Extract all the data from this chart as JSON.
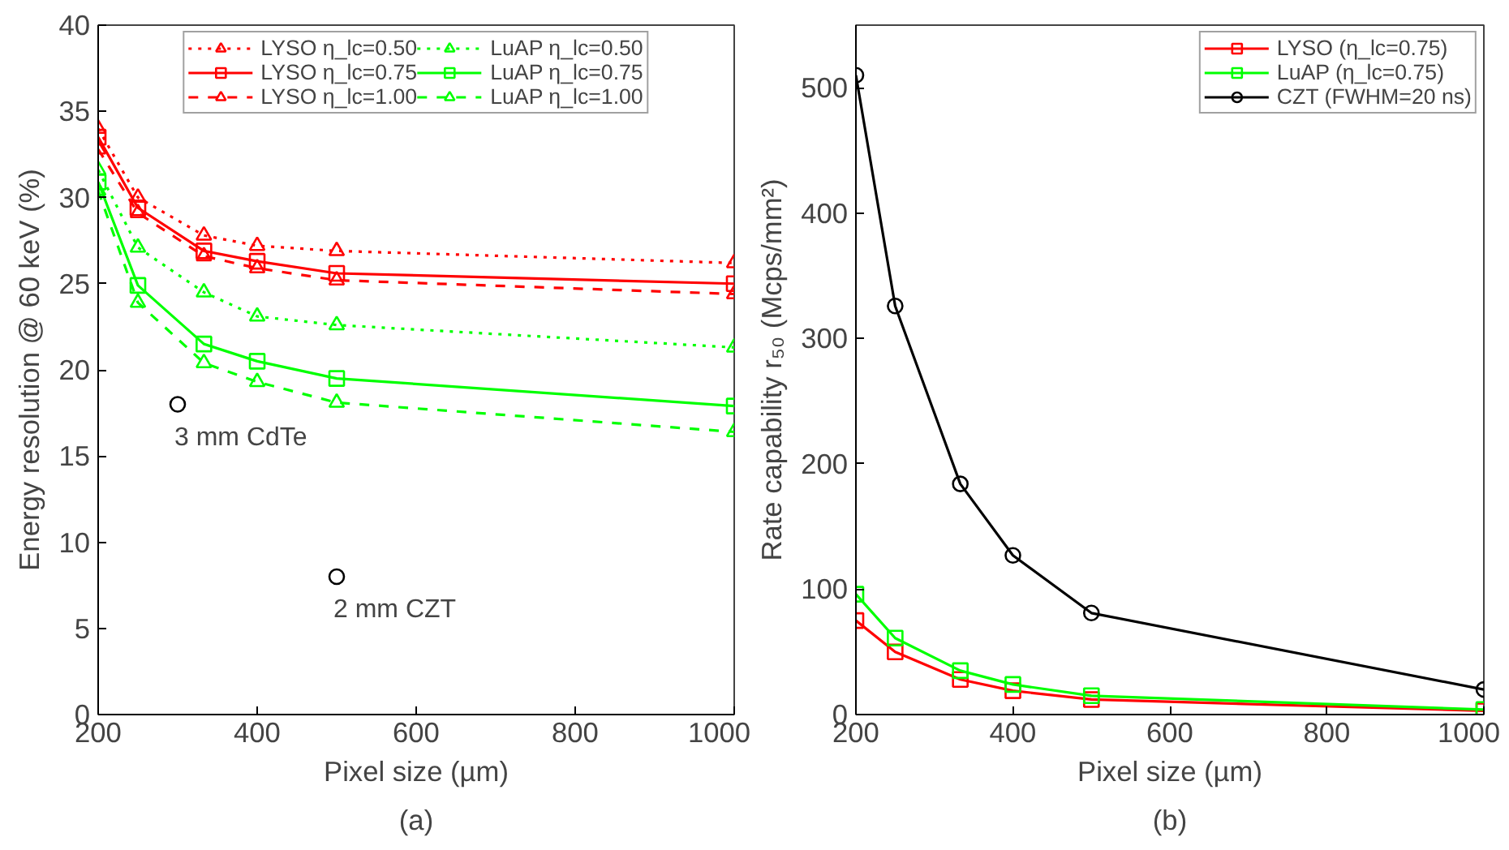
{
  "chart_data": [
    {
      "type": "line",
      "xlabel": "Pixel size (µm)",
      "ylabel": "Energy resolution @ 60 keV (%)",
      "x": [
        200,
        250,
        333,
        400,
        500,
        1000
      ],
      "xlim": [
        200,
        1000
      ],
      "xticks": [
        200,
        400,
        600,
        800,
        1000
      ],
      "ylim": [
        0,
        40
      ],
      "yticks": [
        0,
        5,
        10,
        15,
        20,
        25,
        30,
        35,
        40
      ],
      "grid": false,
      "legend": "top",
      "series": [
        {
          "name": "LYSO η_lc=0.50",
          "color": "#ff0000",
          "line_style": "dotted",
          "marker": "triangle",
          "values": [
            34,
            30,
            27.8,
            27.2,
            26.9,
            26.2
          ]
        },
        {
          "name": "LYSO η_lc=0.75",
          "color": "#ff0000",
          "line_style": "solid",
          "marker": "square",
          "values": [
            33.5,
            29.4,
            26.9,
            26.3,
            25.6,
            25.0
          ]
        },
        {
          "name": "LYSO η_lc=1.00",
          "color": "#ff0000",
          "line_style": "dashed",
          "marker": "triangle",
          "values": [
            32.8,
            29.1,
            26.6,
            25.9,
            25.2,
            24.4
          ]
        },
        {
          "name": "LuAP η_lc=0.50",
          "color": "#00ff00",
          "line_style": "dotted",
          "marker": "triangle",
          "values": [
            31.6,
            27.1,
            24.5,
            23.1,
            22.6,
            21.3
          ]
        },
        {
          "name": "LuAP η_lc=0.75",
          "color": "#00ff00",
          "line_style": "solid",
          "marker": "square",
          "values": [
            30.9,
            24.9,
            21.5,
            20.5,
            19.5,
            17.9
          ]
        },
        {
          "name": "LuAP η_lc=1.00",
          "color": "#00ff00",
          "line_style": "dashed",
          "marker": "triangle",
          "values": [
            30.4,
            23.9,
            20.4,
            19.3,
            18.1,
            16.4
          ]
        },
        {
          "type": "scatter",
          "color": "#000000",
          "marker": "circle",
          "x": [
            300,
            500
          ],
          "values": [
            18,
            8
          ]
        }
      ],
      "annotations": [
        {
          "text": "3 mm CdTe",
          "x": 300,
          "y": 18
        },
        {
          "text": "2 mm CZT",
          "x": 500,
          "y": 8
        },
        "(a)"
      ]
    },
    {
      "type": "line",
      "xlabel": "Pixel size (µm)",
      "ylabel": "Rate capability r₅₀ (Mcps/mm²)",
      "x": [
        200,
        250,
        333,
        400,
        500,
        1000
      ],
      "xlim": [
        200,
        1000
      ],
      "xticks": [
        200,
        400,
        600,
        800,
        1000
      ],
      "ylim": [
        0,
        550
      ],
      "yticks": [
        0,
        100,
        200,
        300,
        400,
        500
      ],
      "grid": false,
      "legend": "top right",
      "series": [
        {
          "name": "LYSO (η_lc=0.75)",
          "color": "#ff0000",
          "line_style": "solid",
          "marker": "square",
          "values": [
            75,
            50,
            28,
            19,
            12,
            3
          ]
        },
        {
          "name": "LuAP (η_lc=0.75)",
          "color": "#00ff00",
          "line_style": "solid",
          "marker": "square",
          "values": [
            96,
            61,
            35,
            24,
            15,
            4
          ]
        },
        {
          "name": "CZT (FWHM=20 ns)",
          "color": "#000000",
          "line_style": "solid",
          "marker": "circle",
          "values": [
            510,
            326,
            184,
            127,
            81,
            20
          ]
        }
      ],
      "annotations": [
        "(b)"
      ]
    }
  ]
}
